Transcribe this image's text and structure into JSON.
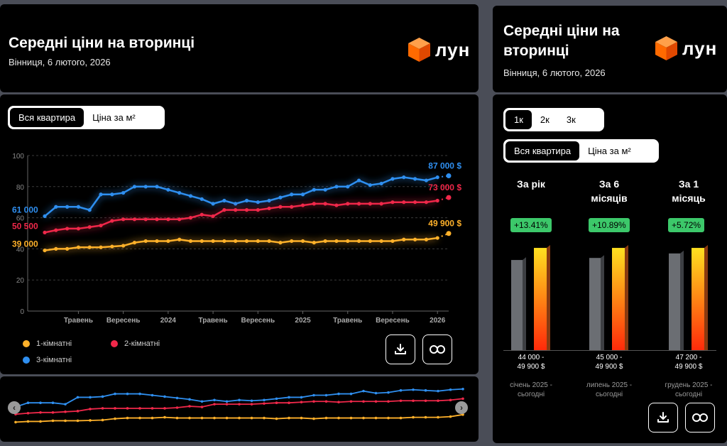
{
  "header": {
    "title": "Середні ціни на вторинці",
    "subtitle": "Вінниця, 6 лютого, 2026",
    "logo_text": "лун"
  },
  "side_header": {
    "title_line1": "Середні ціни на",
    "title_line2": "вторинці",
    "subtitle": "Вінниця, 6 лютого, 2026",
    "logo_text": "лун"
  },
  "toggle": {
    "whole": "Вся квартира",
    "per_m2": "Ціна за м²"
  },
  "rooms_toggle": {
    "r1": "1к",
    "r2": "2к",
    "r3": "3к"
  },
  "legend": {
    "r1": "1-кімнатні",
    "r2": "2-кімнатні",
    "r3": "3-кімнатні"
  },
  "colors": {
    "r1": "#ffb12a",
    "r2": "#f0284a",
    "r3": "#2f8ff0",
    "bar_old": "#6b6e73",
    "bar_new": "#ff7a1a",
    "badge": "#3cc86a"
  },
  "chart_data": {
    "type": "line",
    "xlabel": "",
    "ylabel": "",
    "ylim": [
      0,
      100
    ],
    "y_ticks": [
      0,
      20,
      40,
      60,
      80,
      100
    ],
    "x_ticks": [
      {
        "label": "Травень",
        "idx": 3
      },
      {
        "label": "Вересень",
        "idx": 7
      },
      {
        "label": "2024",
        "idx": 11
      },
      {
        "label": "Травень",
        "idx": 15
      },
      {
        "label": "Вересень",
        "idx": 19
      },
      {
        "label": "2025",
        "idx": 23
      },
      {
        "label": "Травень",
        "idx": 27
      },
      {
        "label": "Вересень",
        "idx": 31
      },
      {
        "label": "2026",
        "idx": 35
      }
    ],
    "series": [
      {
        "name": "3-кімнатні",
        "key": "r3",
        "start_label": "61 000",
        "end_label": "87 000 $",
        "values": [
          61,
          67,
          67,
          67,
          65,
          75,
          75,
          76,
          80,
          80,
          80,
          78,
          76,
          74,
          72,
          69,
          71,
          69,
          71,
          70,
          71,
          73,
          75,
          75,
          78,
          78,
          80,
          80,
          84,
          81,
          82,
          85,
          86,
          85,
          84,
          86,
          87
        ]
      },
      {
        "name": "2-кімнатні",
        "key": "r2",
        "start_label": "50 500",
        "end_label": "73 000 $",
        "values": [
          50.5,
          52,
          53,
          53,
          54,
          55,
          58,
          59,
          59,
          59,
          59,
          59,
          59,
          60,
          62,
          61,
          65,
          65,
          65,
          65,
          66,
          67,
          67,
          68,
          69,
          69,
          68,
          69,
          69,
          69,
          69,
          70,
          70,
          70,
          70,
          71,
          73
        ]
      },
      {
        "name": "1-кімнатні",
        "key": "r1",
        "start_label": "39 000",
        "end_label": "49 900 $",
        "values": [
          39,
          40,
          40,
          41,
          41,
          41,
          41.5,
          42,
          44,
          45,
          45,
          45,
          46,
          45,
          45,
          45,
          45,
          45,
          45,
          45,
          45,
          44,
          45,
          45,
          44,
          45,
          45,
          45,
          45,
          45,
          45,
          45,
          46,
          46,
          46,
          47,
          49.9
        ]
      }
    ]
  },
  "comparison": {
    "columns": [
      {
        "h1": "За рік",
        "h2": "",
        "change": "+13.41%",
        "old_value": 44000,
        "new_value": 49900,
        "range1": "44 000 -",
        "range2": "49 900 $",
        "period1": "січень 2025 -",
        "period2": "сьогодні"
      },
      {
        "h1": "За 6",
        "h2": "місяців",
        "change": "+10.89%",
        "old_value": 45000,
        "new_value": 49900,
        "range1": "45 000 -",
        "range2": "49 900 $",
        "period1": "липень 2025 -",
        "period2": "сьогодні"
      },
      {
        "h1": "За 1",
        "h2": "місяць",
        "change": "+5.72%",
        "old_value": 47200,
        "new_value": 49900,
        "range1": "47 200 -",
        "range2": "49 900 $",
        "period1": "грудень 2025 -",
        "period2": "сьогодні"
      }
    ]
  }
}
